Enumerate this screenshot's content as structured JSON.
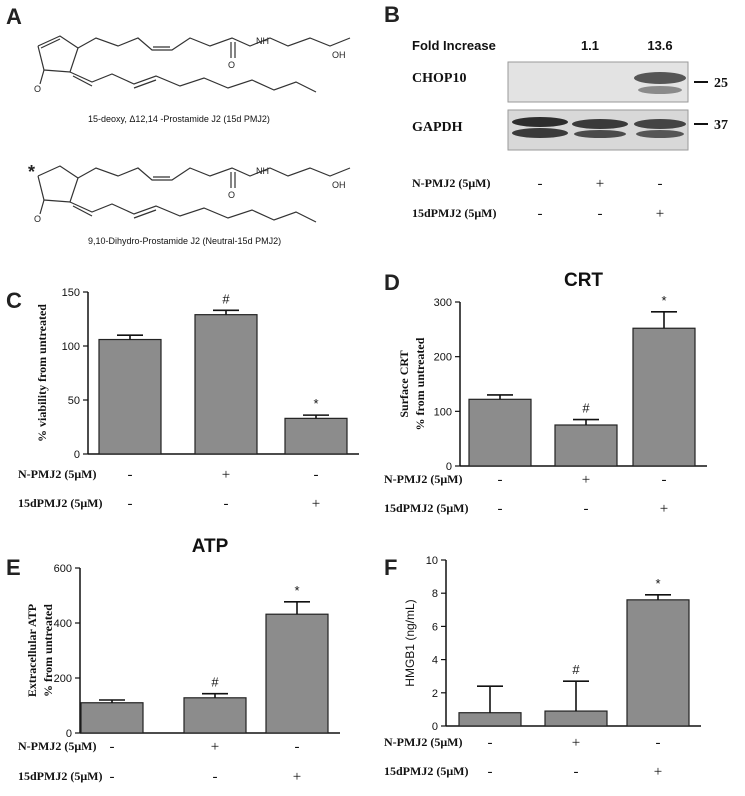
{
  "panels": {
    "A": {
      "letter": "A",
      "structure1_caption": "15-deoxy, Δ12,14 -Prostamide J2 (15d PMJ2)",
      "structure2_caption": "9,10-Dihydro-Prostamide J2 (Neutral-15d PMJ2)",
      "atoms": {
        "o": "O",
        "nh": "NH",
        "oh": "OH",
        "star": "*"
      }
    },
    "B": {
      "letter": "B",
      "fold_label": "Fold Increase",
      "fold_values": [
        "1.1",
        "13.6"
      ],
      "band_labels": [
        "CHOP10",
        "GAPDH"
      ],
      "mw_markers": [
        "25",
        "37"
      ],
      "treatment_rows": [
        {
          "label": "N-PMJ2 (5μM)",
          "signs": [
            "-",
            "+",
            "-"
          ]
        },
        {
          "label": "15dPMJ2 (5μM)",
          "signs": [
            "-",
            "-",
            "+"
          ]
        }
      ]
    },
    "C": {
      "letter": "C"
    },
    "D": {
      "letter": "D"
    },
    "E": {
      "letter": "E"
    },
    "F": {
      "letter": "F"
    }
  },
  "chart_data": [
    {
      "panel": "C",
      "type": "bar",
      "title": "",
      "ylabel": "% viability from untreated",
      "ylim": [
        0,
        150
      ],
      "yticks": [
        0,
        50,
        100,
        150
      ],
      "values": [
        106,
        129,
        33
      ],
      "errors": [
        4,
        4,
        3
      ],
      "annotations": [
        "",
        "#",
        "*"
      ],
      "treatment_rows": [
        {
          "label": "N-PMJ2 (5μM)",
          "signs": [
            "-",
            "+",
            "-"
          ]
        },
        {
          "label": "15dPMJ2 (5μM)",
          "signs": [
            "-",
            "-",
            "+"
          ]
        }
      ]
    },
    {
      "panel": "D",
      "type": "bar",
      "title": "CRT",
      "ylabel": "Surface CRT",
      "ylabel2": "% from untreated",
      "ylim": [
        0,
        300
      ],
      "yticks": [
        0,
        100,
        200,
        300
      ],
      "values": [
        122,
        75,
        252
      ],
      "errors": [
        8,
        10,
        30
      ],
      "annotations": [
        "",
        "#",
        "*"
      ],
      "treatment_rows": [
        {
          "label": "N-PMJ2 (5μM)",
          "signs": [
            "-",
            "+",
            "-"
          ]
        },
        {
          "label": "15dPMJ2 (5μM)",
          "signs": [
            "-",
            "-",
            "+"
          ]
        }
      ]
    },
    {
      "panel": "E",
      "type": "bar",
      "title": "ATP",
      "ylabel": "Extracellular ATP",
      "ylabel2": "% from untreated",
      "ylim": [
        0,
        600
      ],
      "yticks": [
        0,
        200,
        400,
        600
      ],
      "values": [
        110,
        128,
        432
      ],
      "errors": [
        10,
        15,
        45
      ],
      "annotations": [
        "",
        "#",
        "*"
      ],
      "treatment_rows": [
        {
          "label": "N-PMJ2 (5μM)",
          "signs": [
            "-",
            "+",
            "-"
          ]
        },
        {
          "label": "15dPMJ2 (5μM)",
          "signs": [
            "-",
            "-",
            "+"
          ]
        }
      ]
    },
    {
      "panel": "F",
      "type": "bar",
      "title": "",
      "ylabel": "HMGB1 (ng/mL)",
      "ylim": [
        0,
        10
      ],
      "yticks": [
        0,
        2,
        4,
        6,
        8,
        10
      ],
      "values": [
        0.8,
        0.9,
        7.6
      ],
      "errors": [
        1.6,
        1.8,
        0.3
      ],
      "annotations": [
        "",
        "#",
        "*"
      ],
      "treatment_rows": [
        {
          "label": "N-PMJ2 (5μM)",
          "signs": [
            "-",
            "+",
            "-"
          ]
        },
        {
          "label": "15dPMJ2 (5μM)",
          "signs": [
            "-",
            "-",
            "+"
          ]
        }
      ]
    }
  ]
}
